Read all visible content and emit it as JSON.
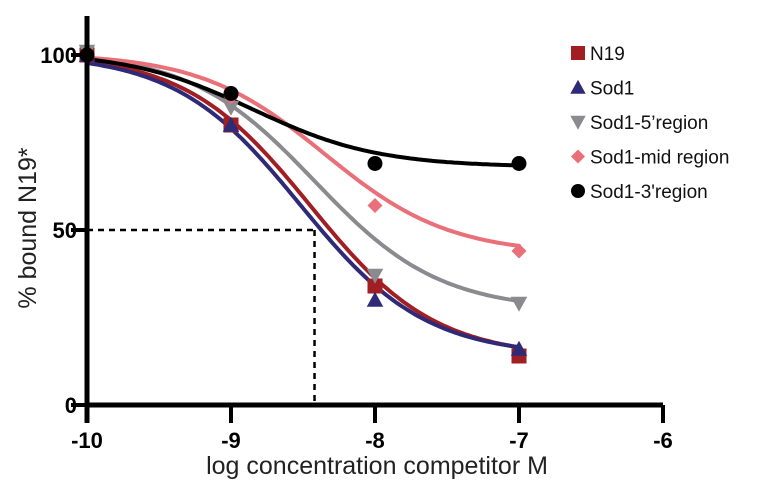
{
  "chart_data": {
    "type": "scatter",
    "title": "",
    "xlabel": "log concentration competitor M",
    "ylabel": "% bound N19*",
    "xlim": [
      -10,
      -6
    ],
    "ylim": [
      0,
      100
    ],
    "x_ticks": [
      "-10",
      "-9",
      "-8",
      "-7",
      "-6"
    ],
    "y_ticks": [
      "0",
      "50",
      "100"
    ],
    "legend_position": "top-right",
    "grid": false,
    "reference_lines": {
      "y": 50,
      "x": -8.42
    },
    "series": [
      {
        "name": "N19",
        "color": "#a11e22",
        "marker": "square",
        "x": [
          -10,
          -9,
          -8,
          -7
        ],
        "y": [
          100,
          80,
          34,
          14
        ],
        "fit": {
          "top": 100.5,
          "bottom": 13.5,
          "logec50": -8.45,
          "hill": 1.0
        }
      },
      {
        "name": "Sod1",
        "color": "#2e2a78",
        "marker": "triangle-up",
        "x": [
          -10,
          -9,
          -8,
          -7
        ],
        "y": [
          100,
          80,
          30,
          16
        ],
        "fit": {
          "top": 100.5,
          "bottom": 14.0,
          "logec50": -8.52,
          "hill": 1.0
        }
      },
      {
        "name": "Sod1-5’region",
        "color": "#8b8b8f",
        "marker": "triangle-down",
        "x": [
          -10,
          -9,
          -8,
          -7
        ],
        "y": [
          101,
          85,
          37,
          29
        ],
        "fit": {
          "top": 101.0,
          "bottom": 27.0,
          "logec50": -8.42,
          "hill": 1.0
        }
      },
      {
        "name": "Sod1-mid region",
        "color": "#e96f79",
        "marker": "diamond",
        "x": [
          -10,
          -9,
          -8,
          -7
        ],
        "y": [
          100,
          88,
          57,
          44
        ],
        "fit": {
          "top": 100.5,
          "bottom": 43.0,
          "logec50": -8.35,
          "hill": 1.0
        }
      },
      {
        "name": "Sod1-3'region",
        "color": "#000000",
        "marker": "circle",
        "x": [
          -10,
          -9,
          -8,
          -7
        ],
        "y": [
          100,
          89,
          69,
          69
        ],
        "fit": {
          "top": 101.0,
          "bottom": 68.0,
          "logec50": -8.85,
          "hill": 1.0
        }
      }
    ]
  }
}
